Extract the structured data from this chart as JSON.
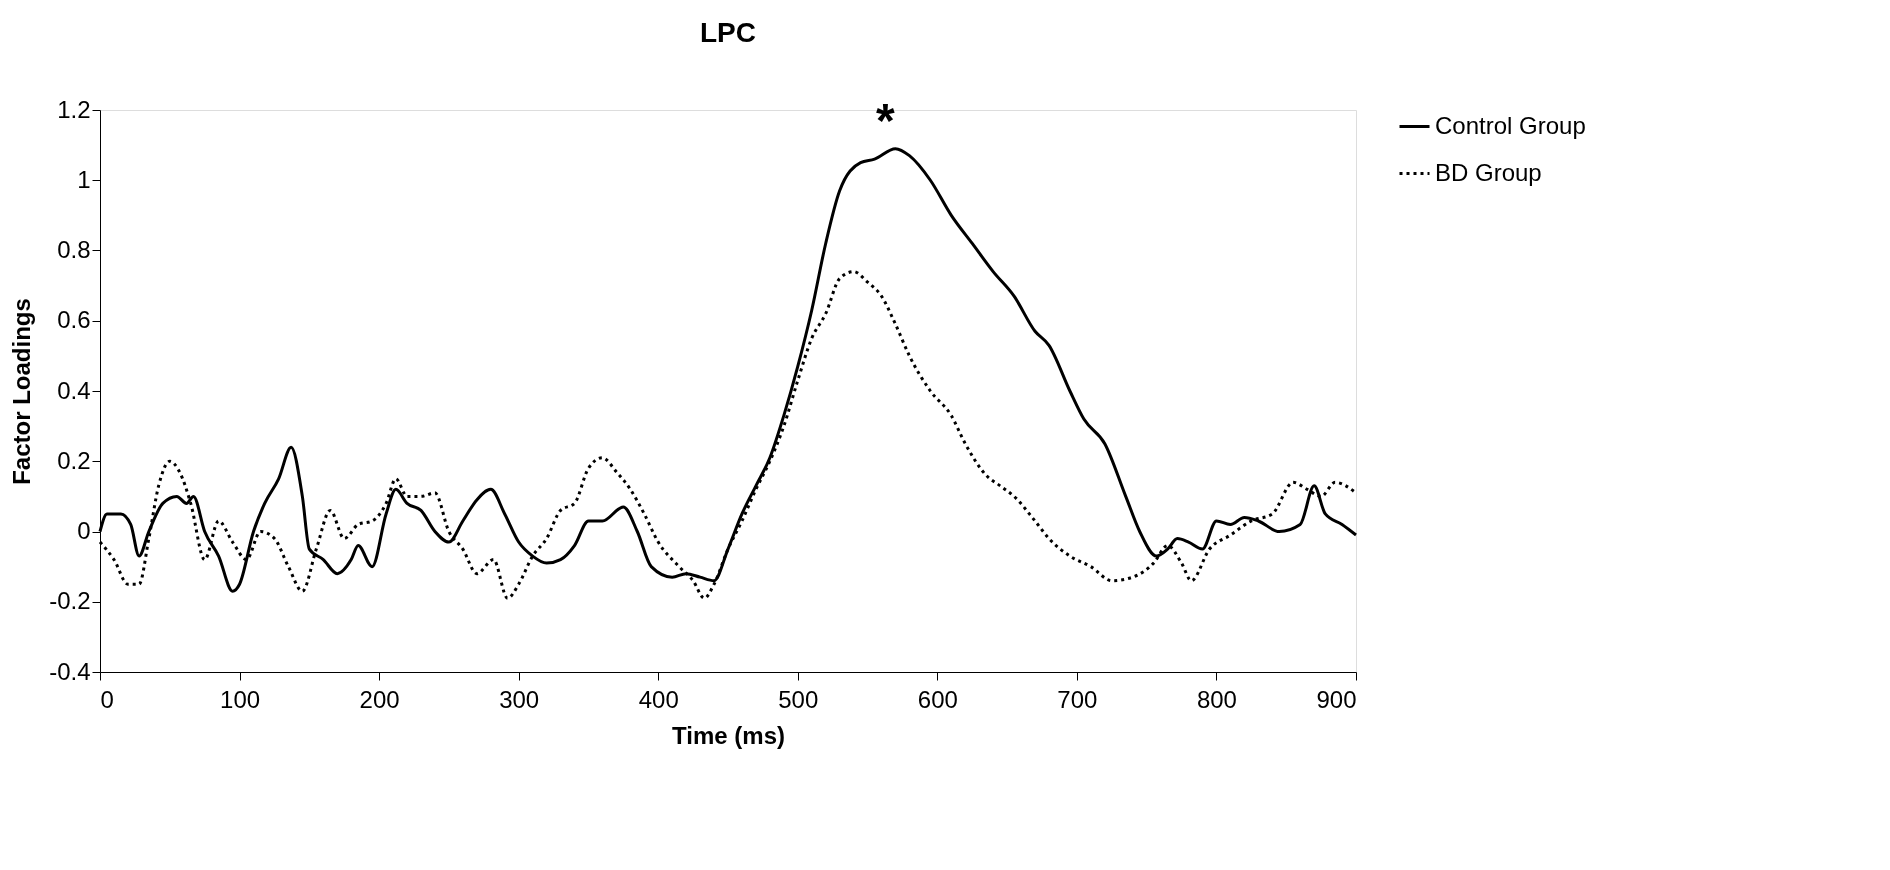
{
  "chart_data": {
    "type": "line",
    "title": "LPC",
    "xlabel": "Time (ms)",
    "ylabel": "Factor Loadings",
    "xlim": [
      0,
      900
    ],
    "xticks": [
      0,
      100,
      200,
      300,
      400,
      500,
      600,
      700,
      800,
      900
    ],
    "ylim": [
      -0.4,
      1.2
    ],
    "yticks": [
      -0.4,
      -0.2,
      0,
      0.2,
      0.4,
      0.6,
      0.8,
      1,
      1.2
    ],
    "grid": false,
    "legend": "right",
    "marker": "none",
    "annotations": [
      "*"
    ],
    "series": [
      {
        "name": "Control Group",
        "color": "#000000",
        "line_style": "solid",
        "x": [
          0,
          5,
          15,
          22,
          28,
          35,
          45,
          55,
          62,
          67,
          75,
          85,
          95,
          100,
          110,
          118,
          128,
          137,
          145,
          150,
          160,
          170,
          180,
          185,
          195,
          205,
          212,
          220,
          230,
          240,
          250,
          260,
          270,
          280,
          290,
          300,
          310,
          320,
          330,
          340,
          350,
          360,
          375,
          385,
          395,
          410,
          420,
          430,
          440,
          450,
          460,
          470,
          480,
          490,
          500,
          510,
          520,
          530,
          545,
          555,
          570,
          580,
          595,
          610,
          625,
          640,
          655,
          670,
          680,
          695,
          705,
          720,
          735,
          745,
          757,
          765,
          772,
          780,
          790,
          800,
          810,
          820,
          830,
          845,
          860,
          870,
          878,
          890,
          900
        ],
        "values": [
          0.0,
          0.05,
          0.05,
          0.02,
          -0.07,
          0.0,
          0.08,
          0.1,
          0.08,
          0.1,
          0.0,
          -0.07,
          -0.17,
          -0.15,
          0.0,
          0.08,
          0.15,
          0.24,
          0.1,
          -0.05,
          -0.08,
          -0.12,
          -0.08,
          -0.04,
          -0.1,
          0.05,
          0.12,
          0.08,
          0.06,
          0.0,
          -0.03,
          0.03,
          0.09,
          0.12,
          0.05,
          -0.03,
          -0.07,
          -0.09,
          -0.08,
          -0.04,
          0.03,
          0.03,
          0.07,
          0.0,
          -0.1,
          -0.13,
          -0.12,
          -0.13,
          -0.14,
          -0.05,
          0.05,
          0.13,
          0.21,
          0.33,
          0.47,
          0.63,
          0.82,
          0.97,
          1.05,
          1.06,
          1.09,
          1.07,
          1.0,
          0.9,
          0.82,
          0.74,
          0.67,
          0.57,
          0.53,
          0.4,
          0.32,
          0.25,
          0.1,
          0.0,
          -0.07,
          -0.05,
          -0.02,
          -0.03,
          -0.05,
          0.03,
          0.02,
          0.04,
          0.03,
          0.0,
          0.02,
          0.13,
          0.05,
          0.02,
          -0.01
        ]
      },
      {
        "name": "BD Group",
        "color": "#000000",
        "line_style": "dotted",
        "x": [
          0,
          10,
          20,
          28,
          35,
          42,
          50,
          57,
          65,
          75,
          85,
          95,
          105,
          115,
          125,
          135,
          145,
          155,
          165,
          175,
          185,
          195,
          205,
          212,
          220,
          230,
          240,
          250,
          260,
          270,
          282,
          292,
          300,
          310,
          320,
          330,
          340,
          350,
          360,
          370,
          380,
          390,
          400,
          415,
          425,
          433,
          440,
          450,
          460,
          470,
          480,
          490,
          500,
          510,
          520,
          530,
          540,
          550,
          560,
          570,
          580,
          595,
          610,
          620,
          635,
          645,
          655,
          670,
          680,
          695,
          710,
          725,
          740,
          755,
          765,
          775,
          782,
          795,
          810,
          825,
          840,
          855,
          865,
          875,
          885,
          900
        ],
        "values": [
          -0.03,
          -0.08,
          -0.15,
          -0.15,
          -0.02,
          0.13,
          0.2,
          0.17,
          0.08,
          -0.08,
          0.03,
          -0.03,
          -0.08,
          0.0,
          -0.02,
          -0.1,
          -0.17,
          -0.05,
          0.06,
          -0.02,
          0.02,
          0.03,
          0.08,
          0.15,
          0.1,
          0.1,
          0.11,
          0.0,
          -0.05,
          -0.12,
          -0.08,
          -0.19,
          -0.15,
          -0.07,
          -0.02,
          0.06,
          0.08,
          0.18,
          0.21,
          0.17,
          0.12,
          0.05,
          -0.03,
          -0.1,
          -0.14,
          -0.19,
          -0.15,
          -0.05,
          0.03,
          0.12,
          0.2,
          0.3,
          0.43,
          0.55,
          0.62,
          0.72,
          0.74,
          0.71,
          0.67,
          0.59,
          0.5,
          0.4,
          0.33,
          0.25,
          0.16,
          0.13,
          0.1,
          0.03,
          -0.02,
          -0.07,
          -0.1,
          -0.14,
          -0.13,
          -0.09,
          -0.04,
          -0.09,
          -0.14,
          -0.05,
          -0.01,
          0.03,
          0.05,
          0.14,
          0.12,
          0.1,
          0.14,
          0.11
        ]
      }
    ]
  }
}
